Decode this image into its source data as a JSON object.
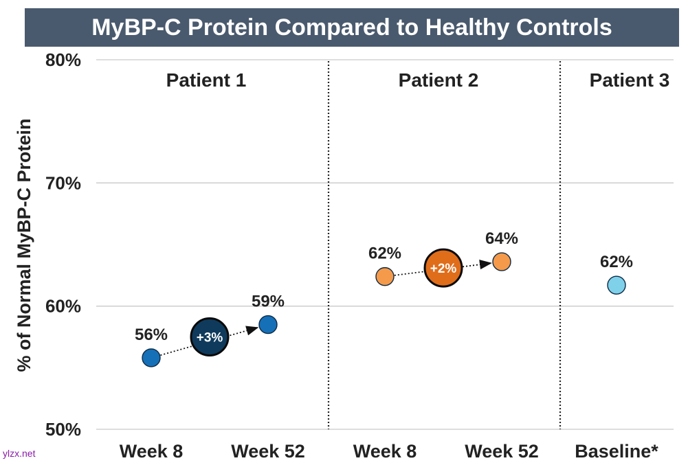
{
  "colors": {
    "title_bg": "#4a5a6e",
    "grid": "#c9c9c9",
    "separator": "#222222",
    "text": "#222222",
    "patient1": "#1570b8",
    "patient1_delta": "#0f3a5c",
    "patient2": "#f59a4a",
    "patient2_delta": "#e06d1a",
    "patient3": "#7fd1ea"
  },
  "watermark": "ylzx.net",
  "chart_data": {
    "type": "scatter",
    "title": "MyBP-C Protein Compared to Healthy Controls",
    "ylabel": "% of Normal MyBP-C Protein",
    "xlabel": "",
    "ylim": [
      50,
      80
    ],
    "yticks": [
      50,
      60,
      70,
      80
    ],
    "ytick_labels": [
      "50%",
      "60%",
      "70%",
      "80%"
    ],
    "grid": true,
    "categories": [
      "Week 8",
      "Week 52",
      "Week 8",
      "Week 52",
      "Baseline*"
    ],
    "groups": [
      {
        "name": "Patient 1",
        "color_key": "patient1",
        "delta_color_key": "patient1_delta",
        "points": [
          {
            "x": "Week 8",
            "y": 55.8,
            "label": "56%"
          },
          {
            "x": "Week 52",
            "y": 58.5,
            "label": "59%"
          }
        ],
        "delta": {
          "label": "+3%",
          "y": 57.5
        }
      },
      {
        "name": "Patient 2",
        "color_key": "patient2",
        "delta_color_key": "patient2_delta",
        "points": [
          {
            "x": "Week 8",
            "y": 62.4,
            "label": "62%"
          },
          {
            "x": "Week 52",
            "y": 63.6,
            "label": "64%"
          }
        ],
        "delta": {
          "label": "+2%",
          "y": 63.1
        }
      },
      {
        "name": "Patient 3",
        "color_key": "patient3",
        "points": [
          {
            "x": "Baseline*",
            "y": 61.7,
            "label": "62%"
          }
        ]
      }
    ]
  }
}
